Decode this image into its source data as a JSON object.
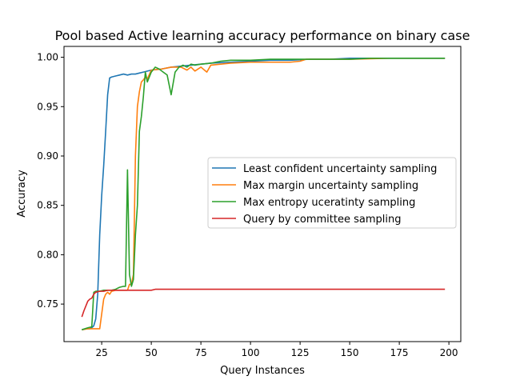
{
  "chart_data": {
    "type": "line",
    "title": "Pool based Active learning accuracy performance on binary case",
    "xlabel": "Query Instances",
    "ylabel": "Accuracy",
    "xlim": [
      6,
      206
    ],
    "ylim": [
      0.712,
      1.011
    ],
    "xticks": [
      25,
      50,
      75,
      100,
      125,
      150,
      175,
      200
    ],
    "yticks": [
      0.75,
      0.8,
      0.85,
      0.9,
      0.95,
      1.0
    ],
    "ytick_labels": [
      "0.75",
      "0.80",
      "0.85",
      "0.90",
      "0.95",
      "1.00"
    ],
    "grid": false,
    "legend_position": "center-right",
    "series": [
      {
        "name": "Least confident uncertainty sampling",
        "color": "#1f77b4",
        "x": [
          15,
          17,
          19,
          20,
          21,
          22,
          23,
          24,
          25,
          26,
          27,
          28,
          29,
          30,
          32,
          34,
          36,
          38,
          40,
          42,
          44,
          46,
          48,
          50,
          55,
          60,
          65,
          70,
          75,
          80,
          90,
          100,
          110,
          120,
          130,
          140,
          150,
          160,
          170,
          180,
          190,
          198
        ],
        "y": [
          0.724,
          0.725,
          0.725,
          0.726,
          0.728,
          0.735,
          0.76,
          0.82,
          0.86,
          0.89,
          0.925,
          0.962,
          0.979,
          0.98,
          0.981,
          0.982,
          0.983,
          0.982,
          0.983,
          0.983,
          0.984,
          0.985,
          0.986,
          0.987,
          0.988,
          0.99,
          0.991,
          0.992,
          0.993,
          0.994,
          0.995,
          0.996,
          0.997,
          0.997,
          0.998,
          0.998,
          0.999,
          0.999,
          0.999,
          0.999,
          0.999,
          0.999
        ]
      },
      {
        "name": "Max margin uncertainty sampling",
        "color": "#ff7f0e",
        "x": [
          15,
          18,
          20,
          22,
          24,
          25,
          26,
          27,
          28,
          29,
          30,
          32,
          34,
          36,
          38,
          39,
          40,
          41,
          42,
          43,
          44,
          45,
          46,
          47,
          48,
          50,
          55,
          60,
          65,
          68,
          70,
          72,
          75,
          78,
          80,
          85,
          90,
          100,
          110,
          120,
          125,
          128,
          135,
          150,
          170,
          198
        ],
        "y": [
          0.724,
          0.725,
          0.725,
          0.725,
          0.725,
          0.74,
          0.755,
          0.76,
          0.762,
          0.76,
          0.763,
          0.764,
          0.764,
          0.764,
          0.764,
          0.77,
          0.77,
          0.78,
          0.9,
          0.95,
          0.965,
          0.975,
          0.977,
          0.98,
          0.978,
          0.987,
          0.988,
          0.99,
          0.99,
          0.987,
          0.99,
          0.986,
          0.99,
          0.985,
          0.992,
          0.993,
          0.994,
          0.995,
          0.995,
          0.995,
          0.996,
          0.998,
          0.998,
          0.998,
          0.999,
          0.999
        ]
      },
      {
        "name": "Max entropy uceratinty sampling",
        "color": "#2ca02c",
        "x": [
          15,
          18,
          20,
          21,
          22,
          24,
          26,
          28,
          30,
          32,
          34,
          36,
          37,
          38,
          39,
          40,
          41,
          42,
          43,
          44,
          45,
          46,
          47,
          48,
          50,
          52,
          54,
          56,
          58,
          60,
          62,
          64,
          66,
          68,
          70,
          72,
          75,
          80,
          85,
          90,
          100,
          110,
          120,
          130,
          140,
          150,
          160,
          170,
          180,
          190,
          198
        ],
        "y": [
          0.724,
          0.726,
          0.727,
          0.762,
          0.763,
          0.763,
          0.764,
          0.764,
          0.764,
          0.765,
          0.767,
          0.768,
          0.768,
          0.886,
          0.78,
          0.768,
          0.775,
          0.82,
          0.85,
          0.925,
          0.94,
          0.96,
          0.985,
          0.975,
          0.985,
          0.99,
          0.988,
          0.985,
          0.982,
          0.962,
          0.985,
          0.99,
          0.992,
          0.99,
          0.993,
          0.992,
          0.993,
          0.994,
          0.996,
          0.997,
          0.997,
          0.998,
          0.998,
          0.998,
          0.998,
          0.998,
          0.999,
          0.999,
          0.999,
          0.999,
          0.999
        ]
      },
      {
        "name": "Query by committee sampling",
        "color": "#d62728",
        "x": [
          15,
          16,
          17,
          18,
          19,
          20,
          21,
          22,
          24,
          26,
          28,
          30,
          35,
          40,
          45,
          50,
          52,
          55,
          60,
          70,
          80,
          100,
          120,
          150,
          175,
          198
        ],
        "y": [
          0.737,
          0.743,
          0.748,
          0.753,
          0.755,
          0.756,
          0.76,
          0.762,
          0.763,
          0.763,
          0.764,
          0.764,
          0.764,
          0.764,
          0.764,
          0.764,
          0.765,
          0.765,
          0.765,
          0.765,
          0.765,
          0.765,
          0.765,
          0.765,
          0.765,
          0.765
        ]
      }
    ]
  }
}
